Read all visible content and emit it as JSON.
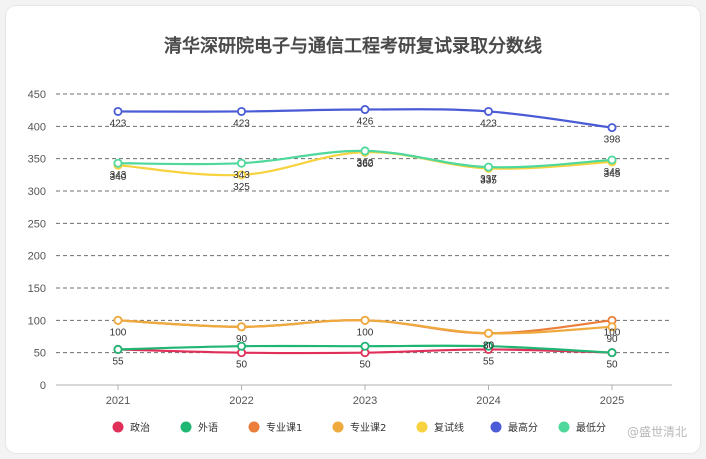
{
  "watermark": "@盛世清北",
  "chart_data": {
    "type": "line",
    "title": "清华深研院电子与通信工程考研复试录取分数线",
    "xlabel": "",
    "ylabel": "",
    "categories": [
      "2021",
      "2022",
      "2023",
      "2024",
      "2025"
    ],
    "ylim": [
      0,
      450
    ],
    "yticks": [
      0,
      50,
      100,
      150,
      200,
      250,
      300,
      350,
      400,
      450
    ],
    "grid": true,
    "legend_position": "bottom",
    "series": [
      {
        "name": "政治",
        "color": "#e0305a",
        "values": [
          55,
          50,
          50,
          55,
          50
        ]
      },
      {
        "name": "外语",
        "color": "#1fb573",
        "values": [
          55,
          60,
          60,
          60,
          50
        ]
      },
      {
        "name": "专业课1",
        "color": "#ea7e3a",
        "values": [
          100,
          90,
          100,
          80,
          100
        ]
      },
      {
        "name": "专业课2",
        "color": "#efaa3e",
        "values": [
          100,
          90,
          100,
          80,
          90
        ]
      },
      {
        "name": "复试线",
        "color": "#f7d23e",
        "values": [
          340,
          325,
          360,
          335,
          345
        ]
      },
      {
        "name": "最高分",
        "color": "#4a5bd6",
        "values": [
          423,
          423,
          426,
          423,
          398
        ]
      },
      {
        "name": "最低分",
        "color": "#4ed89c",
        "values": [
          343,
          343,
          362,
          337,
          348
        ]
      }
    ],
    "point_labels": [
      {
        "x": "2021",
        "y": 423,
        "text": "423"
      },
      {
        "x": "2022",
        "y": 423,
        "text": "423"
      },
      {
        "x": "2023",
        "y": 426,
        "text": "426"
      },
      {
        "x": "2024",
        "y": 423,
        "text": "423"
      },
      {
        "x": "2025",
        "y": 398,
        "text": "398"
      },
      {
        "x": "2021",
        "y": 343,
        "text": "343"
      },
      {
        "x": "2021",
        "y": 340,
        "text": "340"
      },
      {
        "x": "2022",
        "y": 343,
        "text": "343"
      },
      {
        "x": "2022",
        "y": 325,
        "text": "325"
      },
      {
        "x": "2023",
        "y": 362,
        "text": "362"
      },
      {
        "x": "2023",
        "y": 360,
        "text": "360"
      },
      {
        "x": "2024",
        "y": 337,
        "text": "337"
      },
      {
        "x": "2024",
        "y": 335,
        "text": "335"
      },
      {
        "x": "2025",
        "y": 348,
        "text": "348"
      },
      {
        "x": "2025",
        "y": 345,
        "text": "345"
      },
      {
        "x": "2021",
        "y": 100,
        "text": "100"
      },
      {
        "x": "2022",
        "y": 90,
        "text": "90"
      },
      {
        "x": "2023",
        "y": 100,
        "text": "100"
      },
      {
        "x": "2024",
        "y": 80,
        "text": "80"
      },
      {
        "x": "2024",
        "y": 80,
        "text": "80"
      },
      {
        "x": "2025",
        "y": 100,
        "text": "100"
      },
      {
        "x": "2025",
        "y": 90,
        "text": "90"
      },
      {
        "x": "2021",
        "y": 55,
        "text": "55"
      },
      {
        "x": "2022",
        "y": 50,
        "text": "50"
      },
      {
        "x": "2023",
        "y": 50,
        "text": "50"
      },
      {
        "x": "2024",
        "y": 55,
        "text": "55"
      },
      {
        "x": "2025",
        "y": 50,
        "text": "50"
      }
    ]
  }
}
